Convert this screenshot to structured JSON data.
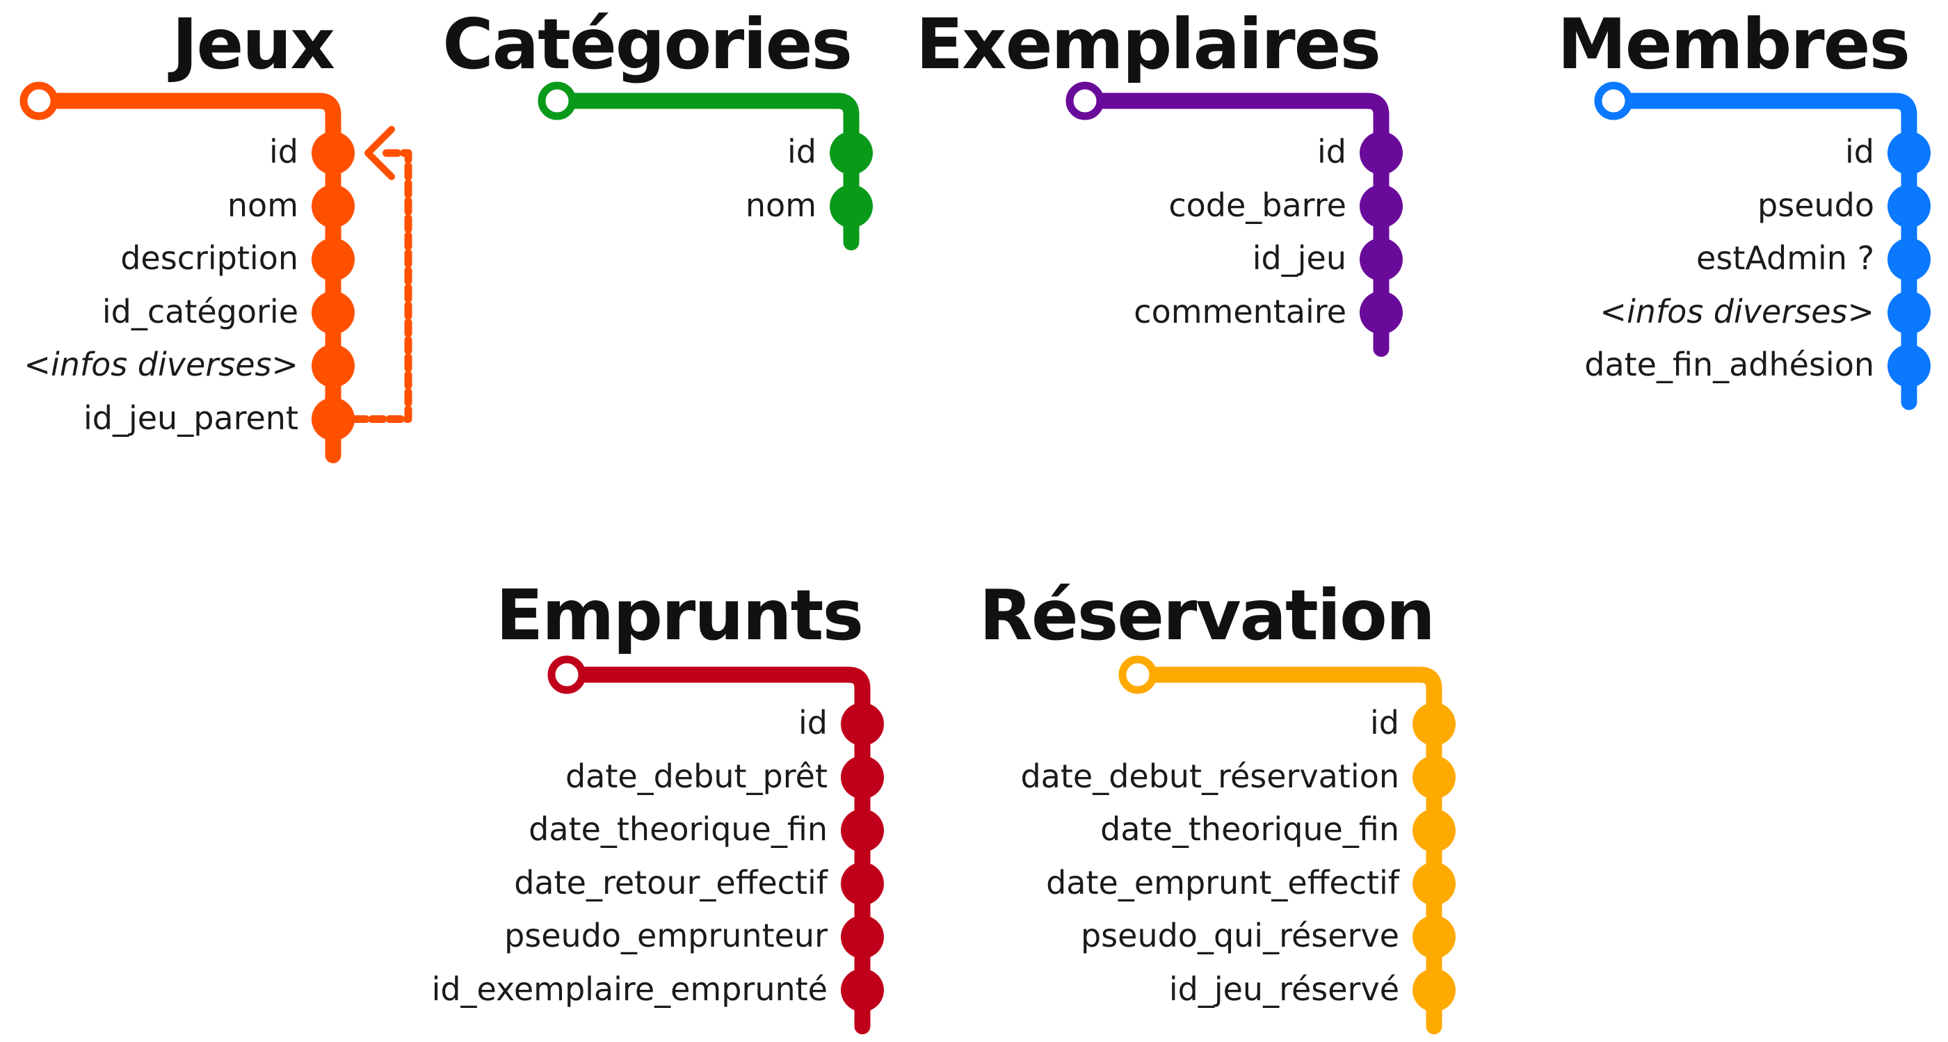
{
  "tables": [
    {
      "id": "jeux",
      "title": "Jeux",
      "color": "#ff5000",
      "fields": [
        {
          "label": "id"
        },
        {
          "label": "nom"
        },
        {
          "label": "description"
        },
        {
          "label": "id_catégorie"
        },
        {
          "label": "<infos diverses>",
          "italic": true
        },
        {
          "label": "id_jeu_parent"
        }
      ],
      "self_reference": {
        "from_field": "id_jeu_parent",
        "to_field": "id",
        "style": "dashed"
      }
    },
    {
      "id": "categories",
      "title": "Catégories",
      "color": "#0a9a1a",
      "fields": [
        {
          "label": "id"
        },
        {
          "label": "nom"
        }
      ]
    },
    {
      "id": "exemplaires",
      "title": "Exemplaires",
      "color": "#6a0a9a",
      "fields": [
        {
          "label": "id"
        },
        {
          "label": "code_barre"
        },
        {
          "label": "id_jeu"
        },
        {
          "label": "commentaire"
        }
      ]
    },
    {
      "id": "membres",
      "title": "Membres",
      "color": "#0a78ff",
      "fields": [
        {
          "label": "id"
        },
        {
          "label": "pseudo"
        },
        {
          "label": "estAdmin ?"
        },
        {
          "label": "<infos diverses>",
          "italic": true
        },
        {
          "label": "date_fin_adhésion"
        }
      ]
    },
    {
      "id": "emprunts",
      "title": "Emprunts",
      "color": "#c0001a",
      "fields": [
        {
          "label": "id"
        },
        {
          "label": "date_debut_prêt"
        },
        {
          "label": "date_theorique_fin"
        },
        {
          "label": "date_retour_effectif"
        },
        {
          "label": "pseudo_emprunteur"
        },
        {
          "label": "id_exemplaire_emprunté"
        }
      ]
    },
    {
      "id": "reservation",
      "title": "Réservation",
      "color": "#ffaa00",
      "fields": [
        {
          "label": "id"
        },
        {
          "label": "date_debut_réservation"
        },
        {
          "label": "date_theorique_fin"
        },
        {
          "label": "date_emprunt_effectif"
        },
        {
          "label": "pseudo_qui_réserve"
        },
        {
          "label": "id_jeu_réservé"
        }
      ]
    }
  ]
}
